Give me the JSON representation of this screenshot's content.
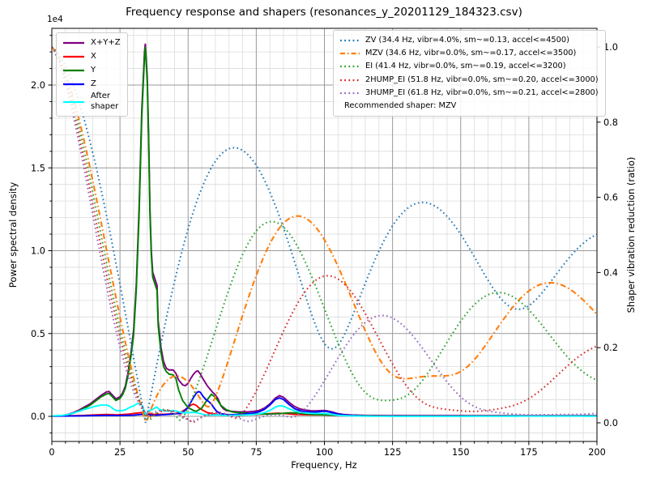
{
  "title": "Frequency response and shapers (resonances_y_20201129_184323.csv)",
  "offset_text": "1e4",
  "xlabel": "Frequency, Hz",
  "ylabel_left": "Power spectral density",
  "ylabel_right": "Shaper vibration reduction (ratio)",
  "legend_right_note": "Recommended shaper: MZV",
  "chart_data": {
    "type": "line",
    "x_range": [
      0,
      200
    ],
    "x_ticks": [
      0,
      25,
      50,
      75,
      100,
      125,
      150,
      175,
      200
    ],
    "x_minor_step": 5,
    "grid": true,
    "left_axis": {
      "label": "Power spectral density",
      "multiplier": "1e4",
      "ticks": [
        0.0,
        0.5,
        1.0,
        1.5,
        2.0
      ],
      "minor_step": 0.1,
      "range": [
        -0.152,
        2.342
      ]
    },
    "right_axis": {
      "label": "Shaper vibration reduction (ratio)",
      "ticks": [
        0.0,
        0.2,
        0.4,
        0.6,
        0.8,
        1.0
      ],
      "range": [
        -0.05,
        1.05
      ]
    },
    "psd_series": [
      {
        "name": "X+Y+Z",
        "color": "#800080",
        "points": [
          [
            0,
            0.002
          ],
          [
            4,
            0.006
          ],
          [
            6,
            0.012
          ],
          [
            8,
            0.024
          ],
          [
            10,
            0.038
          ],
          [
            12,
            0.057
          ],
          [
            14,
            0.075
          ],
          [
            16,
            0.1
          ],
          [
            18,
            0.126
          ],
          [
            20,
            0.147
          ],
          [
            21,
            0.15
          ],
          [
            22,
            0.132
          ],
          [
            23.5,
            0.106
          ],
          [
            25,
            0.118
          ],
          [
            26,
            0.142
          ],
          [
            27,
            0.185
          ],
          [
            28,
            0.27
          ],
          [
            29,
            0.38
          ],
          [
            30,
            0.52
          ],
          [
            31,
            0.8
          ],
          [
            32,
            1.25
          ],
          [
            33,
            1.85
          ],
          [
            34,
            2.2
          ],
          [
            34.3,
            2.25
          ],
          [
            35,
            2.05
          ],
          [
            35.5,
            1.7
          ],
          [
            36,
            1.25
          ],
          [
            36.5,
            1.0
          ],
          [
            37,
            0.87
          ],
          [
            38,
            0.82
          ],
          [
            38.6,
            0.79
          ],
          [
            39,
            0.58
          ],
          [
            40,
            0.42
          ],
          [
            41,
            0.33
          ],
          [
            42,
            0.29
          ],
          [
            43,
            0.28
          ],
          [
            44.5,
            0.28
          ],
          [
            45.5,
            0.26
          ],
          [
            46.5,
            0.22
          ],
          [
            48,
            0.19
          ],
          [
            49,
            0.185
          ],
          [
            50,
            0.2
          ],
          [
            51,
            0.23
          ],
          [
            52,
            0.255
          ],
          [
            53,
            0.272
          ],
          [
            53.6,
            0.274
          ],
          [
            54.5,
            0.255
          ],
          [
            55.5,
            0.225
          ],
          [
            57,
            0.185
          ],
          [
            58,
            0.165
          ],
          [
            59,
            0.145
          ],
          [
            60,
            0.13
          ],
          [
            61,
            0.105
          ],
          [
            62,
            0.065
          ],
          [
            63,
            0.045
          ],
          [
            64,
            0.035
          ],
          [
            66,
            0.03
          ],
          [
            68,
            0.028
          ],
          [
            70,
            0.027
          ],
          [
            72,
            0.027
          ],
          [
            74,
            0.03
          ],
          [
            76,
            0.035
          ],
          [
            78,
            0.05
          ],
          [
            80,
            0.075
          ],
          [
            82,
            0.11
          ],
          [
            83.5,
            0.125
          ],
          [
            85,
            0.115
          ],
          [
            87,
            0.085
          ],
          [
            89,
            0.06
          ],
          [
            91,
            0.045
          ],
          [
            93,
            0.038
          ],
          [
            95,
            0.034
          ],
          [
            97,
            0.033
          ],
          [
            99,
            0.035
          ],
          [
            100,
            0.035
          ],
          [
            101,
            0.033
          ],
          [
            103,
            0.026
          ],
          [
            105,
            0.016
          ],
          [
            107,
            0.011
          ],
          [
            110,
            0.008
          ],
          [
            115,
            0.006
          ],
          [
            120,
            0.005
          ],
          [
            130,
            0.004
          ],
          [
            140,
            0.004
          ],
          [
            160,
            0.004
          ],
          [
            180,
            0.004
          ],
          [
            200,
            0.004
          ]
        ]
      },
      {
        "name": "X",
        "color": "#ff0000",
        "points": [
          [
            0,
            0.001
          ],
          [
            8,
            0.004
          ],
          [
            12,
            0.006
          ],
          [
            16,
            0.009
          ],
          [
            20,
            0.011
          ],
          [
            24,
            0.009
          ],
          [
            28,
            0.013
          ],
          [
            31,
            0.019
          ],
          [
            33,
            0.023
          ],
          [
            35,
            0.016
          ],
          [
            38,
            0.011
          ],
          [
            42,
            0.013
          ],
          [
            45,
            0.016
          ],
          [
            47,
            0.022
          ],
          [
            49,
            0.042
          ],
          [
            51,
            0.067
          ],
          [
            51.9,
            0.074
          ],
          [
            53,
            0.066
          ],
          [
            54,
            0.051
          ],
          [
            55.5,
            0.036
          ],
          [
            57,
            0.023
          ],
          [
            59,
            0.016
          ],
          [
            61,
            0.011
          ],
          [
            64,
            0.009
          ],
          [
            70,
            0.009
          ],
          [
            75,
            0.011
          ],
          [
            80,
            0.016
          ],
          [
            83,
            0.019
          ],
          [
            86,
            0.016
          ],
          [
            90,
            0.011
          ],
          [
            95,
            0.009
          ],
          [
            100,
            0.009
          ],
          [
            105,
            0.007
          ],
          [
            110,
            0.005
          ],
          [
            120,
            0.004
          ],
          [
            140,
            0.004
          ],
          [
            160,
            0.004
          ],
          [
            180,
            0.004
          ],
          [
            200,
            0.004
          ]
        ]
      },
      {
        "name": "Y",
        "color": "#008000",
        "points": [
          [
            0,
            0.001
          ],
          [
            4,
            0.004
          ],
          [
            6,
            0.009
          ],
          [
            8,
            0.02
          ],
          [
            10,
            0.032
          ],
          [
            12,
            0.05
          ],
          [
            14,
            0.067
          ],
          [
            16,
            0.092
          ],
          [
            18,
            0.117
          ],
          [
            20,
            0.135
          ],
          [
            21,
            0.138
          ],
          [
            22,
            0.122
          ],
          [
            23.5,
            0.096
          ],
          [
            25,
            0.108
          ],
          [
            26,
            0.132
          ],
          [
            27,
            0.172
          ],
          [
            28,
            0.25
          ],
          [
            29,
            0.36
          ],
          [
            30,
            0.49
          ],
          [
            31,
            0.77
          ],
          [
            32,
            1.21
          ],
          [
            33,
            1.81
          ],
          [
            34,
            2.17
          ],
          [
            34.3,
            2.23
          ],
          [
            35,
            2.02
          ],
          [
            35.5,
            1.67
          ],
          [
            36,
            1.22
          ],
          [
            36.5,
            0.97
          ],
          [
            37,
            0.84
          ],
          [
            38,
            0.79
          ],
          [
            38.6,
            0.76
          ],
          [
            39,
            0.55
          ],
          [
            40,
            0.39
          ],
          [
            41,
            0.3
          ],
          [
            42,
            0.27
          ],
          [
            43,
            0.255
          ],
          [
            44.5,
            0.25
          ],
          [
            45.5,
            0.23
          ],
          [
            46.5,
            0.16
          ],
          [
            48,
            0.095
          ],
          [
            50,
            0.053
          ],
          [
            52,
            0.035
          ],
          [
            53,
            0.03
          ],
          [
            55,
            0.05
          ],
          [
            57,
            0.1
          ],
          [
            58.5,
            0.133
          ],
          [
            60,
            0.117
          ],
          [
            61,
            0.092
          ],
          [
            62,
            0.067
          ],
          [
            64,
            0.04
          ],
          [
            66,
            0.028
          ],
          [
            68,
            0.023
          ],
          [
            72,
            0.018
          ],
          [
            76,
            0.014
          ],
          [
            80,
            0.014
          ],
          [
            84,
            0.017
          ],
          [
            87,
            0.021
          ],
          [
            90,
            0.021
          ],
          [
            94,
            0.013
          ],
          [
            100,
            0.009
          ],
          [
            105,
            0.007
          ],
          [
            110,
            0.005
          ],
          [
            120,
            0.003
          ],
          [
            140,
            0.003
          ],
          [
            160,
            0.003
          ],
          [
            180,
            0.003
          ],
          [
            200,
            0.003
          ]
        ]
      },
      {
        "name": "Z",
        "color": "#0000ff",
        "points": [
          [
            0,
            0.001
          ],
          [
            10,
            0.003
          ],
          [
            20,
            0.006
          ],
          [
            25,
            0.005
          ],
          [
            30,
            0.007
          ],
          [
            33,
            0.012
          ],
          [
            35,
            0.009
          ],
          [
            38,
            0.007
          ],
          [
            40,
            0.009
          ],
          [
            42,
            0.011
          ],
          [
            44,
            0.013
          ],
          [
            46,
            0.016
          ],
          [
            48,
            0.022
          ],
          [
            50,
            0.055
          ],
          [
            51,
            0.085
          ],
          [
            52,
            0.115
          ],
          [
            53,
            0.14
          ],
          [
            53.8,
            0.15
          ],
          [
            54.5,
            0.145
          ],
          [
            55.5,
            0.12
          ],
          [
            56.5,
            0.102
          ],
          [
            57.5,
            0.09
          ],
          [
            58.5,
            0.075
          ],
          [
            59.5,
            0.05
          ],
          [
            60.5,
            0.03
          ],
          [
            62,
            0.016
          ],
          [
            64,
            0.011
          ],
          [
            66,
            0.01
          ],
          [
            70,
            0.013
          ],
          [
            74,
            0.02
          ],
          [
            76,
            0.027
          ],
          [
            78,
            0.042
          ],
          [
            80,
            0.068
          ],
          [
            82,
            0.102
          ],
          [
            83.5,
            0.112
          ],
          [
            85,
            0.102
          ],
          [
            87,
            0.072
          ],
          [
            89,
            0.047
          ],
          [
            91,
            0.034
          ],
          [
            93,
            0.028
          ],
          [
            95,
            0.026
          ],
          [
            97,
            0.026
          ],
          [
            99,
            0.03
          ],
          [
            100,
            0.031
          ],
          [
            101,
            0.029
          ],
          [
            103,
            0.021
          ],
          [
            105,
            0.013
          ],
          [
            107,
            0.008
          ],
          [
            110,
            0.005
          ],
          [
            115,
            0.003
          ],
          [
            120,
            0.002
          ],
          [
            140,
            0.002
          ],
          [
            160,
            0.002
          ],
          [
            180,
            0.002
          ],
          [
            200,
            0.002
          ]
        ]
      }
    ],
    "after_shaper": {
      "label": "After\nshaper",
      "color": "#00ffff",
      "derived_from": "X+Y+Z PSD multiplied by recommended shaper (MZV) vibration reduction"
    },
    "shapers": [
      {
        "name": "ZV",
        "freq": 34.4,
        "color": "#1f77b4",
        "style": "dotted",
        "label": "ZV (34.4 Hz, vibr=4.0%, sm~=0.13, accel<=4500)"
      },
      {
        "name": "MZV",
        "freq": 34.6,
        "color": "#ff7f0e",
        "style": "dashdot",
        "recommended": true,
        "label": "MZV (34.6 Hz, vibr=0.0%, sm~=0.17, accel<=3500)"
      },
      {
        "name": "EI",
        "freq": 41.4,
        "color": "#2ca02c",
        "style": "dotted",
        "label": "EI (41.4 Hz, vibr=0.0%, sm~=0.19, accel<=3200)"
      },
      {
        "name": "2HUMP_EI",
        "freq": 51.8,
        "color": "#d62728",
        "style": "dotted",
        "label": "2HUMP_EI (51.8 Hz, vibr=0.0%, sm~=0.20, accel<=3000)"
      },
      {
        "name": "3HUMP_EI",
        "freq": 61.8,
        "color": "#9467bd",
        "style": "dotted",
        "label": "3HUMP_EI (61.8 Hz, vibr=0.0%, sm~=0.21, accel<=2800)"
      }
    ]
  }
}
